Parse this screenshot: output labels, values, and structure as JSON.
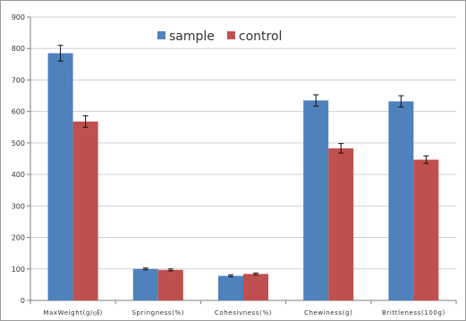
{
  "chart_data": {
    "type": "bar",
    "categories": [
      "MaxWeight(g/㎠)",
      "Springness(%)",
      "Cohesivness(%)",
      "Chewiness(g)",
      "Brittleness(100g)"
    ],
    "series": [
      {
        "name": "sample",
        "color": "#4f81bd",
        "values": [
          785,
          100,
          78,
          635,
          632
        ],
        "errors": [
          25,
          3,
          3,
          18,
          18
        ]
      },
      {
        "name": "control",
        "color": "#c0504d",
        "values": [
          568,
          97,
          84,
          483,
          447
        ],
        "errors": [
          18,
          3,
          3,
          15,
          12
        ]
      }
    ],
    "ylim": [
      0,
      900
    ],
    "yticks": [
      0,
      100,
      200,
      300,
      400,
      500,
      600,
      700,
      800,
      900
    ],
    "grid": "horizontal",
    "legend_position": "top-center",
    "title": "",
    "xlabel": "",
    "ylabel": ""
  }
}
